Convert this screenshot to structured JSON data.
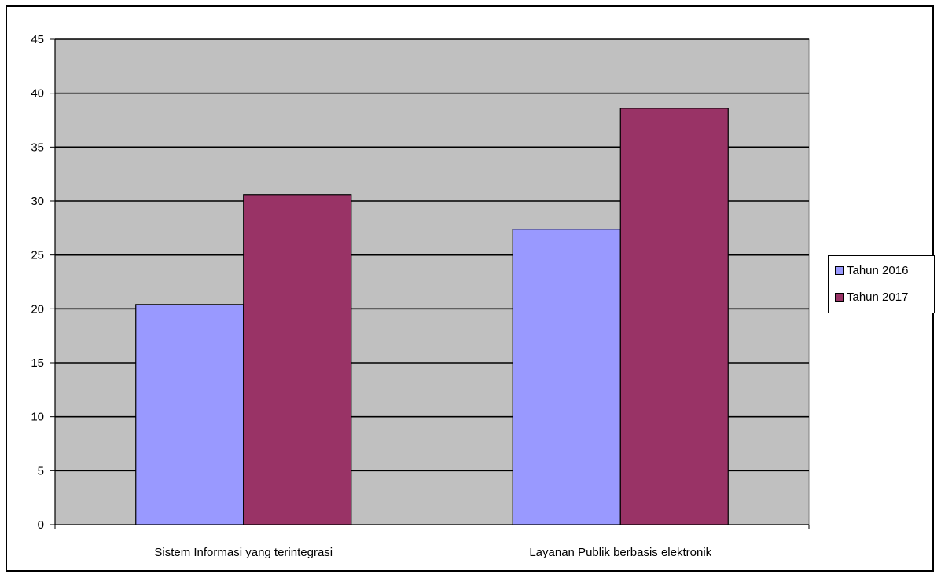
{
  "chart_data": {
    "type": "bar",
    "categories": [
      "Sistem Informasi yang terintegrasi",
      "Layanan Publik berbasis elektronik"
    ],
    "series": [
      {
        "name": "Tahun 2016",
        "values": [
          20.4,
          27.4
        ],
        "color": "#9999FF"
      },
      {
        "name": "Tahun 2017",
        "values": [
          30.6,
          38.6
        ],
        "color": "#993366"
      }
    ],
    "ylim": [
      0,
      45
    ],
    "yticks": [
      "0",
      "5",
      "10",
      "15",
      "20",
      "25",
      "30",
      "35",
      "40",
      "45"
    ],
    "title": "",
    "xlabel": "",
    "ylabel": "",
    "grid": true,
    "legend_position": "right",
    "plot_background": "#C0C0C0"
  }
}
